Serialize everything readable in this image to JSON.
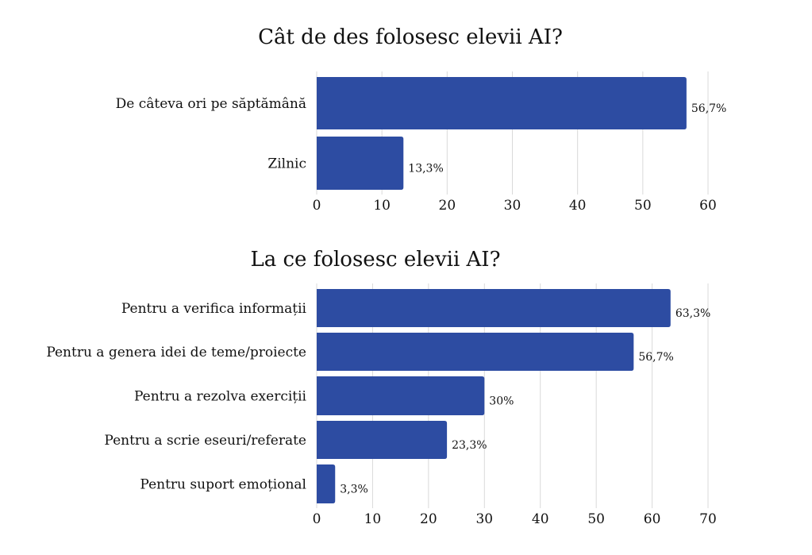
{
  "colors": {
    "bar": "#2d4ca2",
    "grid": "#d9d9d9",
    "text": "#111111"
  },
  "chart_data": [
    {
      "type": "bar",
      "orientation": "horizontal",
      "title": "Cât de des folosesc elevii AI?",
      "categories": [
        "De câteva ori pe săptămână",
        "Zilnic"
      ],
      "values": [
        56.7,
        13.3
      ],
      "data_labels": [
        "56,7%",
        "13,3%"
      ],
      "xlim": [
        0,
        60
      ],
      "ticks": [
        0,
        10,
        20,
        30,
        40,
        50,
        60
      ],
      "grid": true,
      "legend": "none"
    },
    {
      "type": "bar",
      "orientation": "horizontal",
      "title": "La ce folosesc elevii AI?",
      "categories": [
        "Pentru a verifica informații",
        "Pentru a genera idei de teme/proiecte",
        "Pentru a rezolva exerciții",
        "Pentru a scrie eseuri/referate",
        "Pentru suport emoțional"
      ],
      "values": [
        63.3,
        56.7,
        30,
        23.3,
        3.3
      ],
      "data_labels": [
        "63,3%",
        "56,7%",
        "30%",
        "23,3%",
        "3,3%"
      ],
      "xlim": [
        0,
        70
      ],
      "ticks": [
        0,
        10,
        20,
        30,
        40,
        50,
        60,
        70
      ],
      "grid": true,
      "legend": "none"
    }
  ]
}
